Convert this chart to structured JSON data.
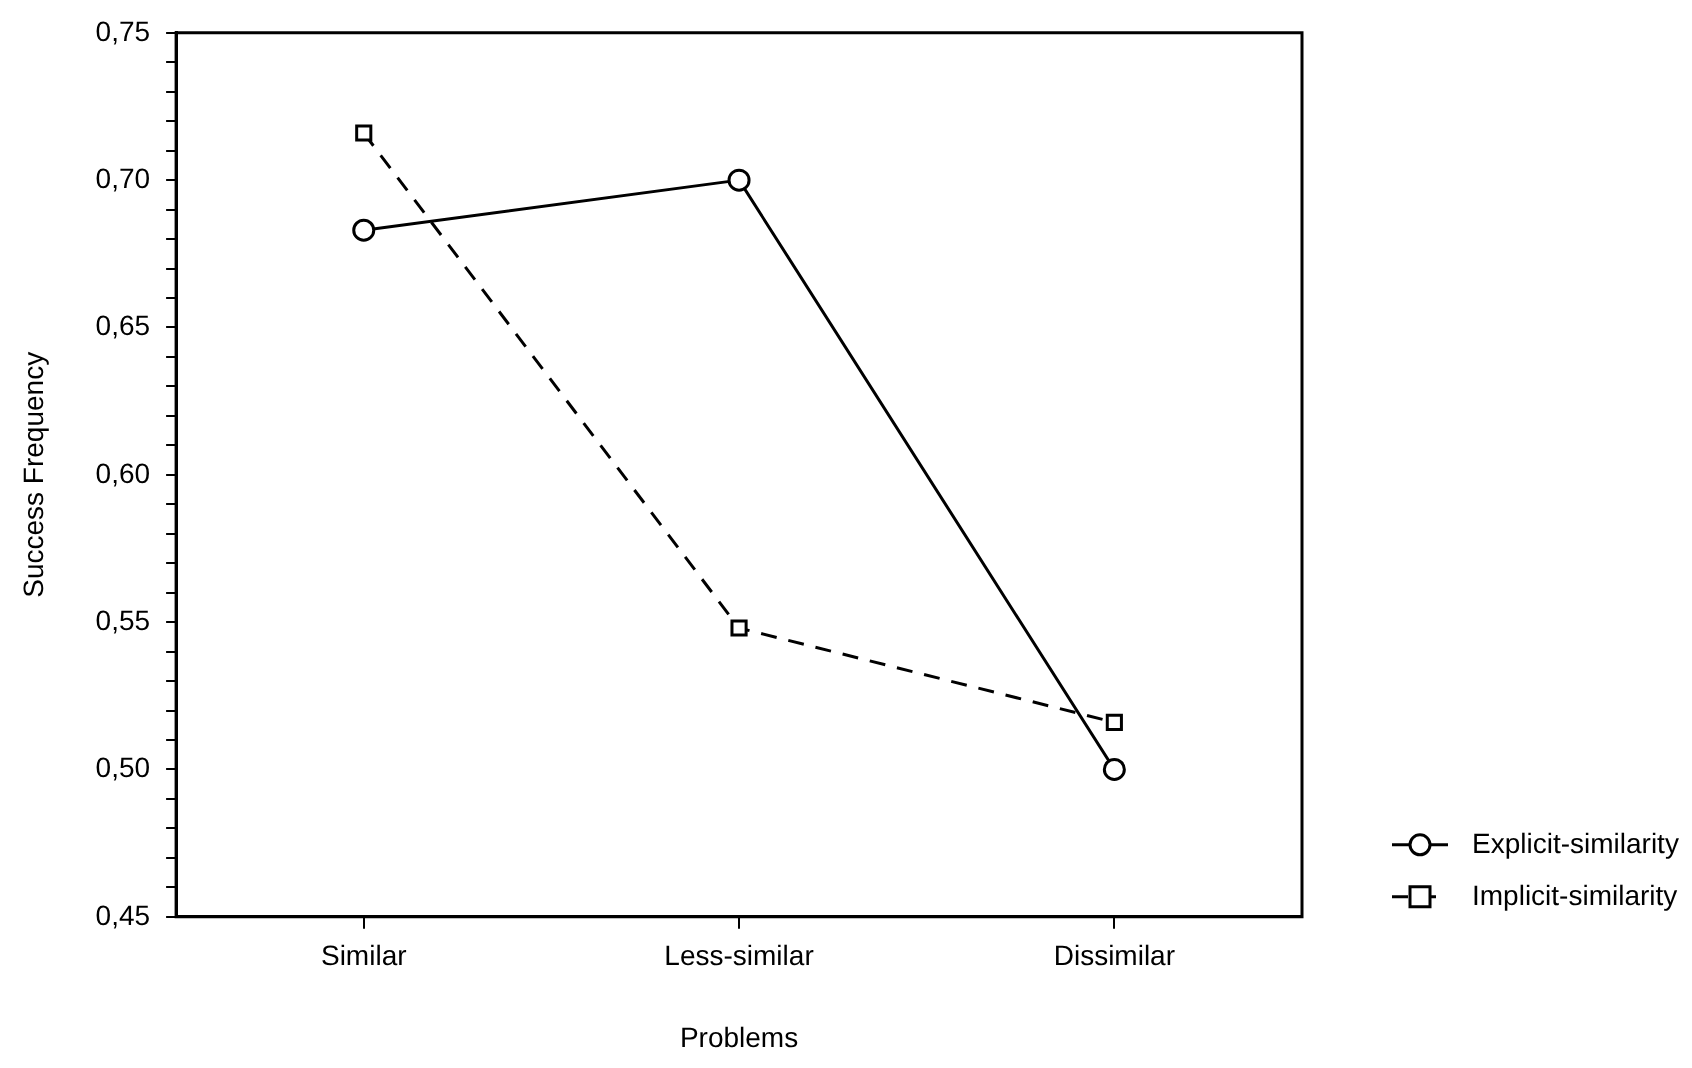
{
  "chart_data": {
    "type": "line",
    "xlabel": "Problems",
    "ylabel": "Success Frequency",
    "categories": [
      "Similar",
      "Less-similar",
      "Dissimilar"
    ],
    "series": [
      {
        "name": "Explicit-similarity",
        "color": "#000000",
        "values": [
          0.683,
          0.7,
          0.5
        ],
        "marker": "circle",
        "line_style": "solid"
      },
      {
        "name": "Implicit-similarity",
        "color": "#000000",
        "values": [
          0.716,
          0.548,
          0.516
        ],
        "marker": "square",
        "line_style": "dashed"
      }
    ],
    "ylim": [
      0.45,
      0.75
    ],
    "yticks": [
      {
        "value": 0.45,
        "label": "0,45"
      },
      {
        "value": 0.46,
        "label": null
      },
      {
        "value": 0.47,
        "label": null
      },
      {
        "value": 0.48,
        "label": null
      },
      {
        "value": 0.49,
        "label": null
      },
      {
        "value": 0.5,
        "label": "0,50"
      },
      {
        "value": 0.51,
        "label": null
      },
      {
        "value": 0.52,
        "label": null
      },
      {
        "value": 0.53,
        "label": null
      },
      {
        "value": 0.54,
        "label": null
      },
      {
        "value": 0.55,
        "label": "0,55"
      },
      {
        "value": 0.56,
        "label": null
      },
      {
        "value": 0.57,
        "label": null
      },
      {
        "value": 0.58,
        "label": null
      },
      {
        "value": 0.59,
        "label": null
      },
      {
        "value": 0.6,
        "label": "0,60"
      },
      {
        "value": 0.61,
        "label": null
      },
      {
        "value": 0.62,
        "label": null
      },
      {
        "value": 0.63,
        "label": null
      },
      {
        "value": 0.64,
        "label": null
      },
      {
        "value": 0.65,
        "label": "0,65"
      },
      {
        "value": 0.66,
        "label": null
      },
      {
        "value": 0.67,
        "label": null
      },
      {
        "value": 0.68,
        "label": null
      },
      {
        "value": 0.69,
        "label": null
      },
      {
        "value": 0.7,
        "label": "0,70"
      },
      {
        "value": 0.71,
        "label": null
      },
      {
        "value": 0.72,
        "label": null
      },
      {
        "value": 0.73,
        "label": null
      },
      {
        "value": 0.74,
        "label": null
      },
      {
        "value": 0.75,
        "label": "0,75"
      }
    ],
    "grid": false,
    "legend": "bottom right"
  }
}
